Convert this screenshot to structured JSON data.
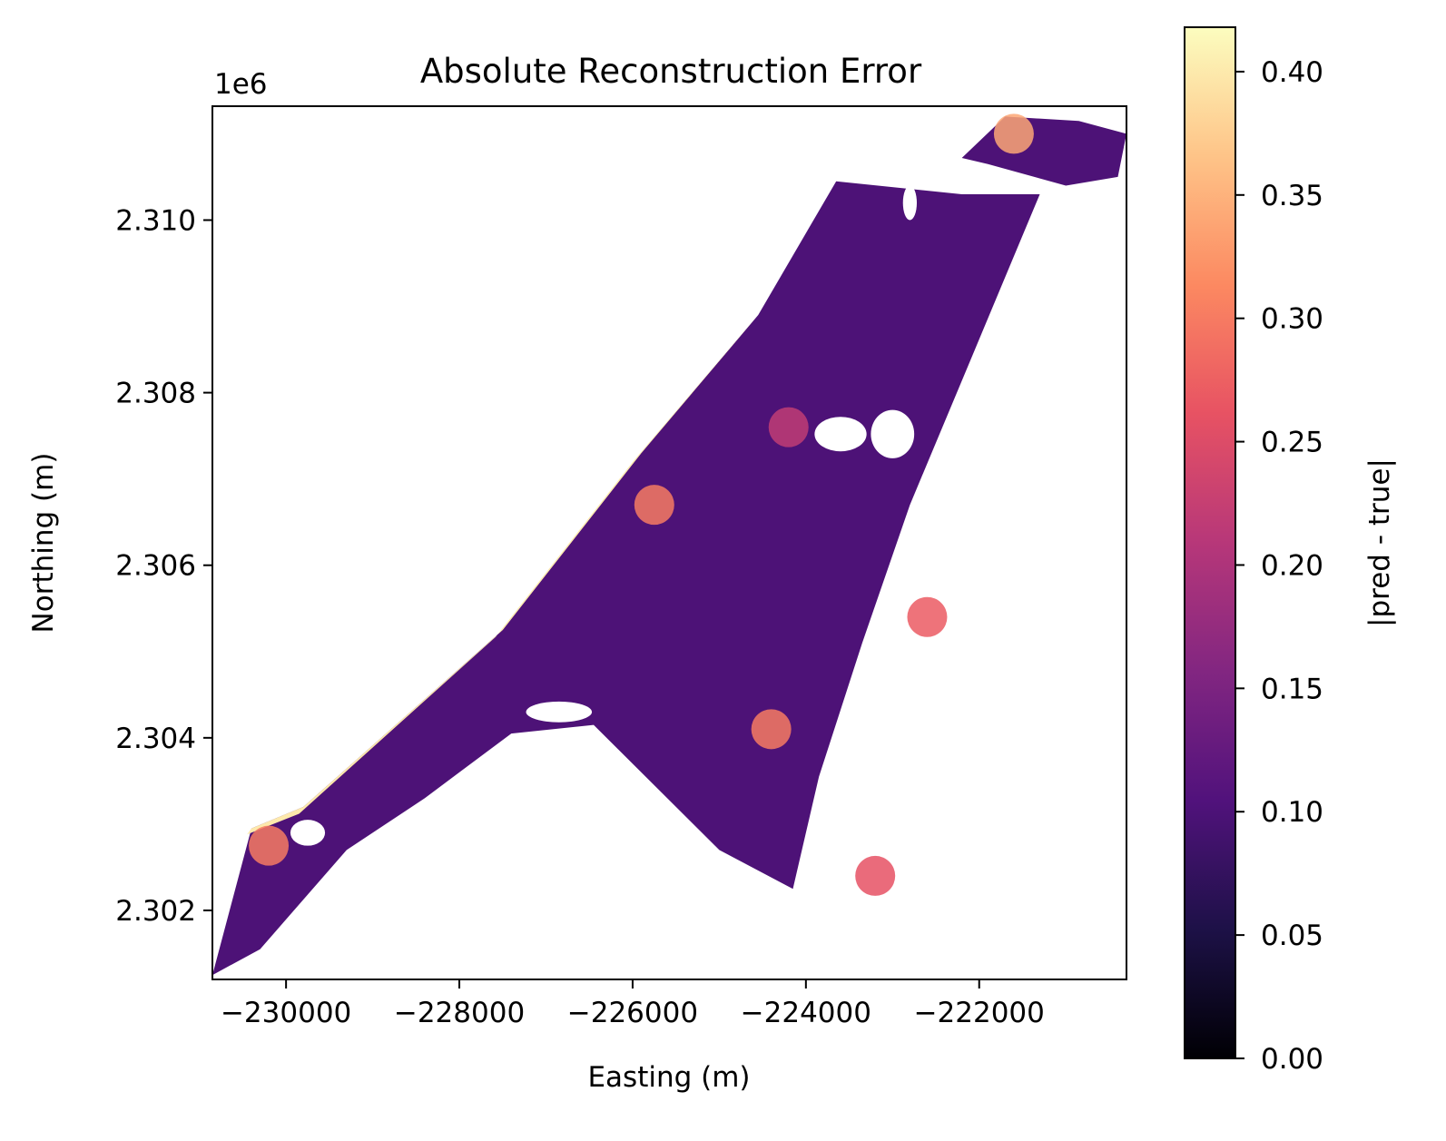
{
  "chart_data": {
    "type": "heatmap",
    "title": "Absolute Reconstruction Error",
    "xlabel": "Easting (m)",
    "ylabel": "Northing (m)",
    "y_offset_label": "1e6",
    "xlim": [
      -230850,
      -220300
    ],
    "ylim": [
      2301200,
      2311320
    ],
    "x_ticks": [
      {
        "value": -230000,
        "label": "−230000"
      },
      {
        "value": -228000,
        "label": "−228000"
      },
      {
        "value": -226000,
        "label": "−226000"
      },
      {
        "value": -224000,
        "label": "−224000"
      },
      {
        "value": -222000,
        "label": "−222000"
      }
    ],
    "y_ticks": [
      {
        "value": 2302000,
        "label": "2.302"
      },
      {
        "value": 2304000,
        "label": "2.304"
      },
      {
        "value": 2306000,
        "label": "2.306"
      },
      {
        "value": 2308000,
        "label": "2.308"
      },
      {
        "value": 2310000,
        "label": "2.310"
      }
    ],
    "colorbar": {
      "label": "|pred - true|",
      "colormap": "magma",
      "range": [
        0.0,
        0.418
      ],
      "ticks": [
        {
          "value": 0.0,
          "label": "0.00"
        },
        {
          "value": 0.05,
          "label": "0.05"
        },
        {
          "value": 0.1,
          "label": "0.10"
        },
        {
          "value": 0.15,
          "label": "0.15"
        },
        {
          "value": 0.2,
          "label": "0.20"
        },
        {
          "value": 0.25,
          "label": "0.25"
        },
        {
          "value": 0.3,
          "label": "0.30"
        },
        {
          "value": 0.35,
          "label": "0.35"
        },
        {
          "value": 0.4,
          "label": "0.40"
        }
      ],
      "stops": [
        "#000004",
        "#1d1147",
        "#51127c",
        "#822681",
        "#b73779",
        "#e75263",
        "#fc8961",
        "#fec488",
        "#fcfdbf"
      ]
    },
    "regions": {
      "main_polygon": [
        [
          -230850,
          2301250
        ],
        [
          -230400,
          2302950
        ],
        [
          -229800,
          2303200
        ],
        [
          -227500,
          2305250
        ],
        [
          -225900,
          2307300
        ],
        [
          -224550,
          2308900
        ],
        [
          -223650,
          2310450
        ],
        [
          -222200,
          2310300
        ],
        [
          -221300,
          2310300
        ],
        [
          -222050,
          2308500
        ],
        [
          -222800,
          2306700
        ],
        [
          -223350,
          2305100
        ],
        [
          -223850,
          2303550
        ],
        [
          -224150,
          2302250
        ],
        [
          -225000,
          2302700
        ],
        [
          -226450,
          2304150
        ],
        [
          -227400,
          2304050
        ],
        [
          -228400,
          2303300
        ],
        [
          -229300,
          2302700
        ],
        [
          -230300,
          2301550
        ]
      ],
      "north_patch": [
        [
          -222200,
          2310720
        ],
        [
          -221700,
          2311200
        ],
        [
          -220850,
          2311150
        ],
        [
          -220300,
          2311000
        ],
        [
          -220400,
          2310500
        ],
        [
          -221000,
          2310400
        ],
        [
          -221900,
          2310650
        ]
      ],
      "boundary_strip": [
        [
          -230400,
          2302950
        ],
        [
          -229800,
          2303200
        ],
        [
          -227500,
          2305250
        ],
        [
          -225900,
          2307300
        ],
        [
          -224550,
          2308900
        ],
        [
          -224620,
          2308820
        ],
        [
          -225980,
          2307220
        ],
        [
          -227580,
          2305170
        ],
        [
          -229850,
          2303120
        ],
        [
          -230450,
          2302880
        ]
      ],
      "holes": [
        {
          "x": -226850,
          "y": 2304300,
          "rx": 380,
          "ry": 120
        },
        {
          "x": -223600,
          "y": 2307520,
          "rx": 300,
          "ry": 200
        },
        {
          "x": -223000,
          "y": 2307520,
          "rx": 250,
          "ry": 280
        },
        {
          "x": -229750,
          "y": 2302900,
          "rx": 200,
          "ry": 150
        },
        {
          "x": -222800,
          "y": 2310200,
          "rx": 80,
          "ry": 200
        }
      ],
      "hotspots": [
        {
          "x": -230200,
          "y": 2302750,
          "v": 0.3
        },
        {
          "x": -224400,
          "y": 2304100,
          "v": 0.3
        },
        {
          "x": -221600,
          "y": 2311000,
          "v": 0.34
        },
        {
          "x": -225750,
          "y": 2306700,
          "v": 0.3
        },
        {
          "x": -222600,
          "y": 2305400,
          "v": 0.27
        },
        {
          "x": -223200,
          "y": 2302400,
          "v": 0.26
        },
        {
          "x": -224200,
          "y": 2307600,
          "v": 0.22
        }
      ],
      "background_level": 0.1
    }
  }
}
